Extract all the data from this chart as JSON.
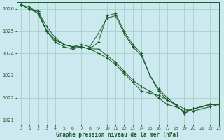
{
  "title": "Graphe pression niveau de la mer (hPa)",
  "background_color": "#cde9f0",
  "grid_color": "#a0ccbb",
  "line_color": "#1a5c2a",
  "xlim": [
    -0.5,
    23
  ],
  "ylim": [
    1020.8,
    1026.3
  ],
  "yticks": [
    1021,
    1022,
    1023,
    1024,
    1025,
    1026
  ],
  "xticks": [
    0,
    1,
    2,
    3,
    4,
    5,
    6,
    7,
    8,
    9,
    10,
    11,
    12,
    13,
    14,
    15,
    16,
    17,
    18,
    19,
    20,
    21,
    22,
    23
  ],
  "series": [
    [
      1026.2,
      1026.1,
      1025.8,
      1025.0,
      1024.6,
      1024.4,
      1024.3,
      1024.3,
      1024.2,
      1024.0,
      1023.8,
      1023.5,
      1023.1,
      1022.7,
      1022.3,
      1022.2,
      1022.1,
      1021.9,
      1021.7,
      1021.5,
      1021.4,
      1021.5,
      1021.6,
      1021.7
    ],
    [
      1026.2,
      1026.0,
      1025.9,
      1025.0,
      1024.5,
      1024.3,
      1024.2,
      1024.3,
      1024.2,
      1024.2,
      1023.9,
      1023.6,
      1023.2,
      1022.8,
      1022.5,
      1022.3,
      1022.0,
      1021.7,
      1021.6,
      1021.4,
      1021.5,
      1021.6,
      1021.7,
      1021.7
    ],
    [
      1026.2,
      1026.0,
      1025.9,
      1025.2,
      1024.7,
      1024.4,
      1024.3,
      1024.3,
      1024.2,
      1024.5,
      1025.7,
      1025.8,
      1025.0,
      1024.4,
      1024.0,
      1023.0,
      1022.4,
      1022.0,
      1021.7,
      1021.3,
      1021.5,
      1021.6,
      1021.7,
      1021.7
    ],
    [
      1026.2,
      1026.0,
      1025.8,
      1025.0,
      1024.6,
      1024.4,
      1024.3,
      1024.4,
      1024.3,
      1024.9,
      1025.6,
      1025.7,
      1024.9,
      1024.3,
      1023.9,
      1023.0,
      1022.3,
      1021.9,
      1021.7,
      1021.3,
      1021.5,
      1021.6,
      1021.7,
      1021.7
    ]
  ]
}
